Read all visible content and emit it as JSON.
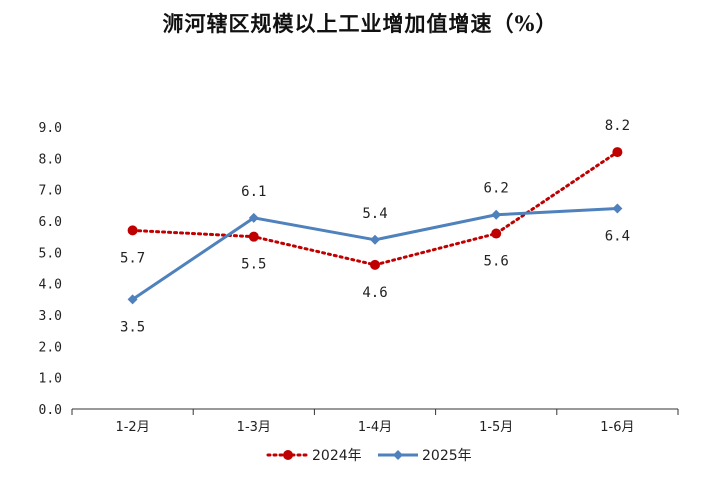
{
  "chart_data": {
    "type": "line",
    "title": "浉河辖区规模以上工业增加值增速（%）",
    "categories": [
      "1-2月",
      "1-3月",
      "1-4月",
      "1-5月",
      "1-6月"
    ],
    "y_ticks": [
      "0.0",
      "1.0",
      "2.0",
      "3.0",
      "4.0",
      "5.0",
      "6.0",
      "7.0",
      "8.0",
      "9.0"
    ],
    "ylim": [
      0,
      9
    ],
    "grid": false,
    "legend_position": "bottom",
    "series": [
      {
        "name": "2024年",
        "values": [
          5.7,
          5.5,
          4.6,
          5.6,
          8.2
        ],
        "value_labels": [
          "5.7",
          "5.5",
          "4.6",
          "5.6",
          "8.2"
        ],
        "color": "#C00000",
        "line_style": "dotted",
        "marker": "circle"
      },
      {
        "name": "2025年",
        "values": [
          3.5,
          6.1,
          5.4,
          6.2,
          6.4
        ],
        "value_labels": [
          "3.5",
          "6.1",
          "5.4",
          "6.2",
          "6.4"
        ],
        "color": "#4F81BD",
        "line_style": "solid",
        "marker": "diamond"
      }
    ]
  }
}
